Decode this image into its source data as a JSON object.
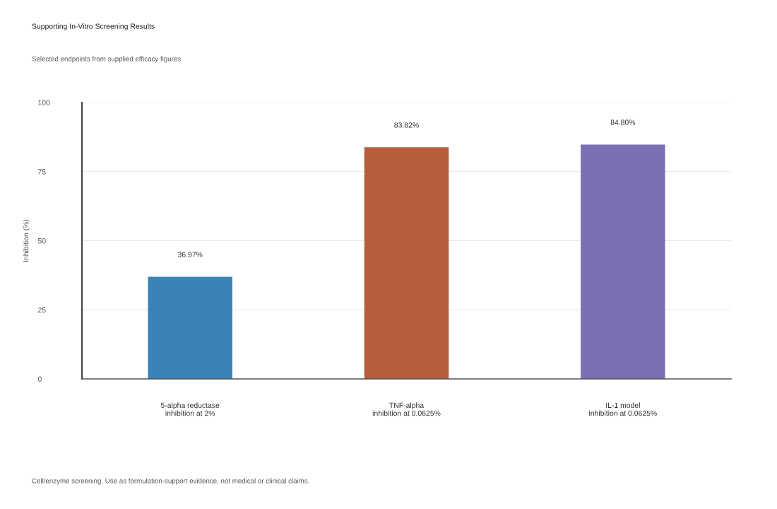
{
  "chart_data": {
    "type": "bar",
    "title": "Supporting In-Vitro Screening Results",
    "subtitle": "Selected endpoints from supplied efficacy figures",
    "ylabel": "Inhibition (%)",
    "categories": [
      "5-alpha reductase\ninhibition at 2%",
      "TNF-alpha\ninhibition at 0.0625%",
      "IL-1 model\ninhibition at 0.0625%"
    ],
    "values": [
      36.97,
      83.82,
      84.8
    ],
    "colors": [
      "#3a83b7",
      "#b65e3c",
      "#7b70b3"
    ],
    "value_labels": [
      "36.97%",
      "83.82%",
      "84.80%"
    ],
    "ylim": [
      0,
      100
    ],
    "yticks": [
      0,
      25,
      50,
      75,
      100
    ],
    "grid": "y",
    "annotations": [
      "Cell/enzyme screening. Use as formulation-support evidence, not medical or clinical claims."
    ]
  }
}
